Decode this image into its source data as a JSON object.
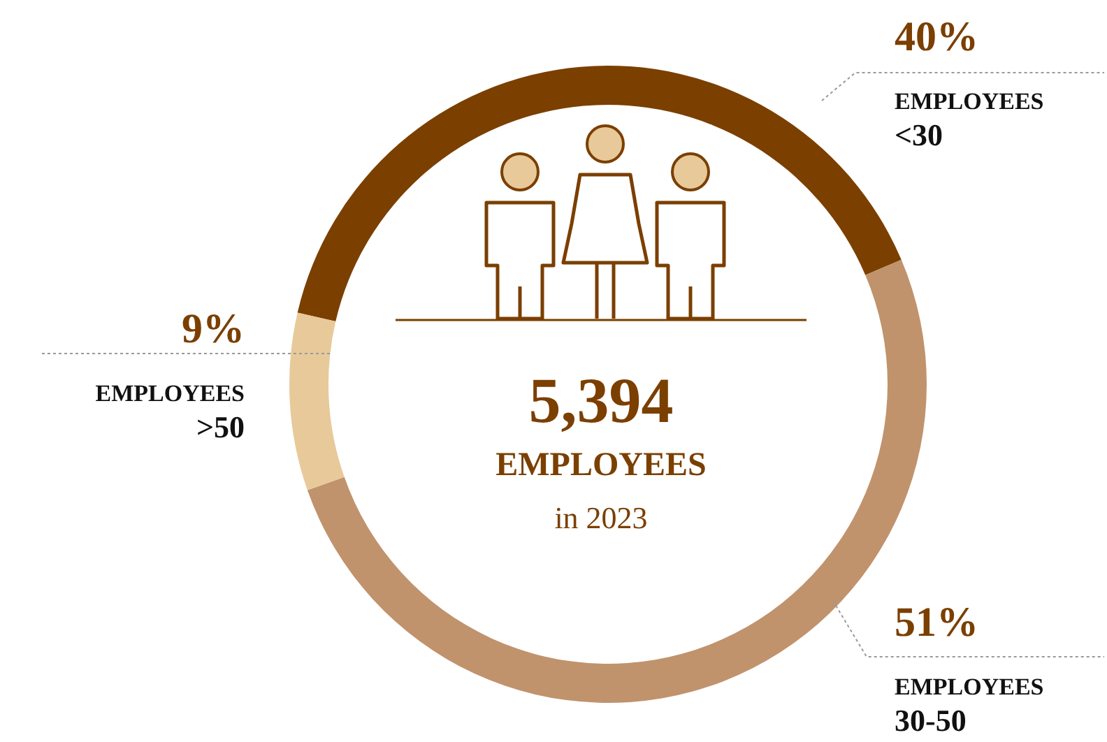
{
  "chart_data": {
    "type": "donut",
    "categories": [
      "EMPLOYEES <30",
      "EMPLOYEES 30-50",
      "EMPLOYEES >50"
    ],
    "values": [
      40,
      51,
      9
    ],
    "value_labels": [
      "40%",
      "51%",
      "9%"
    ],
    "colors": [
      "#7b3f00",
      "#c0936c",
      "#e8c99a"
    ],
    "annotations": [
      "5,394",
      "EMPLOYEES",
      "in 2023"
    ]
  }
}
